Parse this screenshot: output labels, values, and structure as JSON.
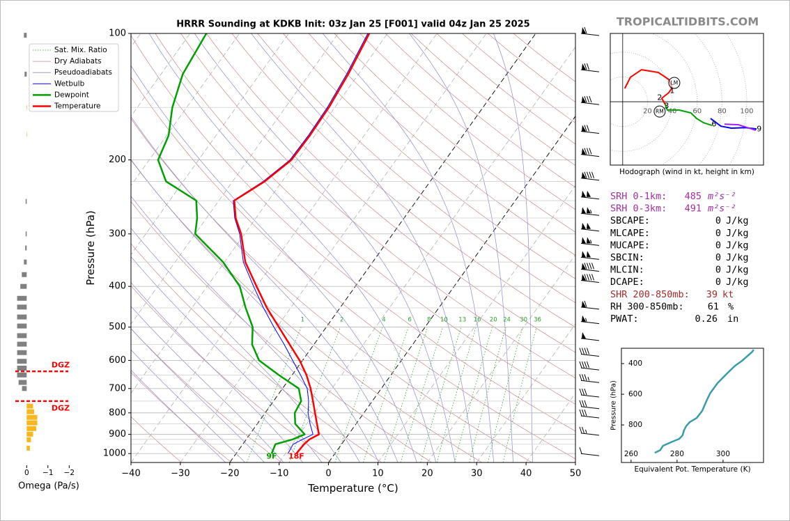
{
  "brand": "TROPICALTIDBITS.COM",
  "chart_data": [
    {
      "type": "skewt",
      "title": "HRRR Sounding at KDKB Init: 03z Jan 25 [F001] valid 04z Jan 25 2025",
      "xlabel": "Temperature (°C)",
      "ylabel": "Pressure (hPa)",
      "xlim": [
        -40,
        50
      ],
      "ylim": [
        1050,
        100
      ],
      "log_y": true,
      "xticks": [
        {
          "value": -40,
          "label": "−40"
        },
        {
          "value": -30,
          "label": "−30"
        },
        {
          "value": -20,
          "label": "−20"
        },
        {
          "value": -10,
          "label": "−10"
        },
        0,
        10,
        20,
        30,
        40,
        50
      ],
      "yticks": [
        100,
        200,
        300,
        400,
        500,
        600,
        700,
        800,
        900,
        1000
      ],
      "minor_yticks": [
        150,
        225,
        250,
        275,
        350,
        450,
        550,
        650,
        750,
        850,
        925,
        950
      ],
      "highlight_isotherms": [
        -20,
        0
      ],
      "pressure": [
        1000,
        950,
        925,
        900,
        850,
        800,
        750,
        700,
        650,
        600,
        550,
        500,
        450,
        400,
        350,
        300,
        275,
        250,
        225,
        200,
        175,
        150,
        125,
        100
      ],
      "reference_lines": [
        {
          "name": "Sat. Mix. Ratio",
          "color": "#2ca02c"
        },
        {
          "name": "Dry Adiabats",
          "color": "#c98a8a"
        },
        {
          "name": "Pseudoadiabats",
          "color": "#8a8ac9"
        }
      ],
      "mixing_ratio_labels": [
        1,
        2,
        4,
        6,
        8,
        10,
        13,
        16,
        20,
        24,
        30,
        36
      ],
      "series": [
        {
          "name": "Wetbulb",
          "color": "#0000ff",
          "linewidth": 1,
          "values": [
            -9.5,
            -9.8,
            -8.6,
            -7.2,
            -9.3,
            -11.3,
            -12.9,
            -15.0,
            -18.3,
            -22.0,
            -26.0,
            -30.6,
            -35.5,
            -40.6,
            -46.2,
            -51.0,
            -54.3,
            -57.1,
            -53.8,
            -51.5,
            -51.3,
            -51.5,
            -52.4,
            -54.0
          ]
        },
        {
          "name": "Dewpoint",
          "color": "#00a000",
          "linewidth": 2.5,
          "surface_label": "9F",
          "values": [
            -12.8,
            -13.4,
            -10.6,
            -8.9,
            -12.3,
            -14.0,
            -14.4,
            -16.7,
            -22.7,
            -28.8,
            -32.5,
            -34.9,
            -39.1,
            -43.4,
            -50.3,
            -60.0,
            -61.9,
            -64.6,
            -73.5,
            -78.2,
            -79.6,
            -82.9,
            -85.6,
            -86.7
          ]
        },
        {
          "name": "Temperature",
          "color": "#ff0000",
          "linewidth": 2.5,
          "surface_label": "18F",
          "values": [
            -7.8,
            -7.6,
            -7.2,
            -6.0,
            -7.9,
            -9.9,
            -12.0,
            -14.3,
            -17.1,
            -20.6,
            -24.9,
            -29.6,
            -34.8,
            -40.0,
            -45.8,
            -50.7,
            -54.1,
            -56.9,
            -53.5,
            -51.2,
            -51.0,
            -51.2,
            -52.1,
            -53.7
          ]
        }
      ],
      "winds": {
        "pressure": [
          100,
          122,
          146,
          171,
          194,
          221,
          245,
          268,
          292,
          316,
          341,
          364,
          387,
          448,
          485,
          532,
          580,
          625,
          670,
          725,
          773,
          813,
          894,
          1000
        ],
        "speed": [
          60,
          70,
          80,
          70,
          80,
          90,
          100,
          105,
          100,
          105,
          100,
          90,
          90,
          60,
          55,
          50,
          40,
          40,
          35,
          30,
          30,
          30,
          25,
          10
        ]
      }
    },
    {
      "type": "omega",
      "xlabel": "Omega (Pa/s)",
      "xlim": [
        0.6,
        -2.2
      ],
      "ylim": [
        1050,
        100
      ],
      "log_y": true,
      "xticks": [
        0,
        {
          "value": -1,
          "label": "−1"
        },
        {
          "value": -2,
          "label": "−2"
        }
      ],
      "positive_color": "#808080",
      "negative_color": "#f7b81f",
      "pressure": [
        101,
        125,
        150,
        174,
        251,
        300,
        324,
        350,
        375,
        400,
        427,
        448,
        473,
        497,
        524,
        549,
        575,
        603,
        626,
        650,
        677,
        700,
        771,
        795,
        820,
        845,
        872,
        899,
        927,
        971
      ],
      "values": [
        0.13,
        0.1,
        -0.02,
        -0.02,
        0.05,
        0.05,
        0.07,
        0.13,
        0.23,
        0.3,
        0.45,
        0.45,
        0.45,
        0.45,
        0.45,
        0.45,
        0.45,
        0.45,
        0.45,
        0.45,
        0.38,
        0.22,
        -0.3,
        -0.35,
        -0.5,
        -0.5,
        -0.45,
        -0.3,
        -0.2,
        -0.15
      ],
      "dgz_color": "#ff0000",
      "dgz": [
        {
          "pressure": 637,
          "label": "DGZ"
        },
        {
          "pressure": 750,
          "label": "DGZ"
        }
      ]
    },
    {
      "type": "hodograph",
      "xlabel": "Hodograph (wind in kt, height in km)",
      "xlim": [
        -10,
        113.5
      ],
      "ylim": [
        -51,
        55
      ],
      "xticks": [
        20,
        40,
        60,
        80,
        100
      ],
      "segments": [
        {
          "color": "#ff0000",
          "u": [
            1.7,
            6.2,
            15.2,
            28.7,
            37.1,
            39.9,
            37.1,
            31.5,
            34.3
          ],
          "v": [
            10.7,
            19.7,
            25.8,
            23.6,
            18,
            11.2,
            7.3,
            2.8,
            -2.2
          ]
        },
        {
          "color": "#00a000",
          "u": [
            34.3,
            36,
            45.5,
            55,
            59.6,
            65.2,
            71.9
          ],
          "v": [
            -2.2,
            -6.7,
            -6.7,
            -9,
            -13.5,
            -16.9,
            -19.1
          ]
        },
        {
          "color": "#0000ff",
          "u": [
            70.8,
            79.2,
            87.6,
            98.9,
            107.9
          ],
          "v": [
            -13.5,
            -19.7,
            -21.3,
            -20.8,
            -21.9
          ]
        },
        {
          "color": "#a020f0",
          "u": [
            82,
            93.3,
            107.3
          ],
          "v": [
            -18,
            -18.5,
            -23
          ]
        }
      ],
      "height_labels": [
        {
          "text": "1",
          "u": 39.9,
          "v": 9
        },
        {
          "text": "2",
          "u": 29.8,
          "v": 3.4
        },
        {
          "text": "3",
          "u": 35.4,
          "v": -3.4
        },
        {
          "text": "6",
          "u": 73.6,
          "v": -18
        },
        {
          "text": "9",
          "u": 110,
          "v": -21.9
        }
      ],
      "storm_motion": [
        {
          "label": "RM",
          "u": 29.8,
          "v": -7.9
        },
        {
          "label": "LM",
          "u": 41.6,
          "v": 15.2
        }
      ]
    },
    {
      "type": "line",
      "xlabel": "Equivalent Pot. Temperature (K)",
      "ylabel": "Pressure (hPa)",
      "xlim": [
        255.8,
        317.6
      ],
      "ylim": [
        1045,
        300
      ],
      "xticks": [
        260,
        280,
        300
      ],
      "yticks": [
        400,
        600,
        800
      ],
      "color": "#3a9bab",
      "x": [
        270.3,
        272.7,
        273.9,
        277.9,
        280.9,
        282.4,
        283.0,
        283.9,
        285.5,
        288.5,
        290.9,
        293.0,
        294.5,
        297.6,
        302.1,
        305.2,
        308.2,
        312.7,
        313.3
      ],
      "values": [
        982,
        964,
        936,
        909,
        891,
        868,
        836,
        809,
        782,
        755,
        709,
        636,
        591,
        527,
        459,
        414,
        382,
        323,
        309
      ]
    }
  ],
  "stats": {
    "rows": [
      {
        "label": "SRH 0-1km:",
        "value": 485,
        "unit": "m²s⁻²"
      },
      {
        "label": "SRH 0-3km:",
        "value": 491,
        "unit": "m²s⁻²"
      },
      {
        "label": "SBCAPE:",
        "value": 0,
        "unit": "J/kg"
      },
      {
        "label": "MLCAPE:",
        "value": 0,
        "unit": "J/kg"
      },
      {
        "label": "MUCAPE:",
        "value": 0,
        "unit": "J/kg"
      },
      {
        "label": "SBCIN:",
        "value": 0,
        "unit": "J/kg"
      },
      {
        "label": "MLCIN:",
        "value": 0,
        "unit": "J/kg"
      },
      {
        "label": "DCAPE:",
        "value": 0,
        "unit": "J/kg"
      },
      {
        "label": "SHR 200-850mb:",
        "value": 39,
        "unit": "kt"
      },
      {
        "label": "RH 300-850mb:",
        "value": 61,
        "unit": "%"
      },
      {
        "label": "PWAT:",
        "value": 0.26,
        "unit": "in"
      }
    ]
  }
}
